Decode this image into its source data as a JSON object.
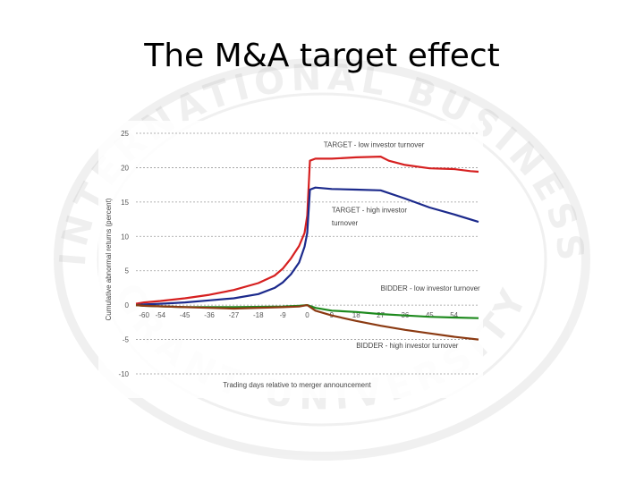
{
  "slide": {
    "title": "The M&A target effect"
  },
  "watermark": {
    "text_top": "INTERNATIONAL BUSINESS",
    "text_bottom": "GRANT UNIVERSITY"
  },
  "colors": {
    "target_low": "#d62020",
    "target_high": "#1c2a8c",
    "bidder_low": "#1e8a1e",
    "bidder_high": "#8b3a12"
  },
  "chart_data": {
    "type": "line",
    "title": "",
    "xlabel": "Trading days relative to merger announcement",
    "ylabel": "Cumulative abnormal returns (percent)",
    "xlim": [
      -63,
      63
    ],
    "ylim": [
      -10,
      25
    ],
    "xticks": [
      -60,
      -54,
      -45,
      -36,
      -27,
      -18,
      -9,
      0,
      9,
      18,
      27,
      36,
      45,
      54
    ],
    "xtick_labels": [
      "-60",
      "-54",
      "-45",
      "-36",
      "-27",
      "-18",
      "-9",
      "0",
      "9",
      "18",
      "27",
      "36",
      "45",
      "54"
    ],
    "yticks": [
      -10,
      -5,
      0,
      5,
      10,
      15,
      20,
      25
    ],
    "ytick_labels": [
      "-10",
      "-5",
      "0",
      "5",
      "10",
      "15",
      "20",
      "25"
    ],
    "gridlines": "dashed horizontal",
    "series": [
      {
        "name": "TARGET - low investor turnover",
        "color_key": "target_low",
        "x": [
          -63,
          -60,
          -54,
          -45,
          -36,
          -27,
          -18,
          -12,
          -9,
          -6,
          -3,
          -1,
          0,
          1,
          3,
          9,
          18,
          27,
          30,
          36,
          45,
          54,
          60,
          63
        ],
        "y": [
          0.2,
          0.4,
          0.6,
          1.0,
          1.5,
          2.2,
          3.2,
          4.3,
          5.3,
          6.8,
          8.6,
          10.5,
          13.0,
          21.0,
          21.3,
          21.3,
          21.5,
          21.6,
          21.0,
          20.4,
          19.9,
          19.8,
          19.5,
          19.4
        ]
      },
      {
        "name": "TARGET - high investor turnover",
        "color_key": "target_high",
        "x": [
          -63,
          -60,
          -54,
          -45,
          -36,
          -27,
          -18,
          -12,
          -9,
          -6,
          -3,
          -1,
          0,
          1,
          3,
          9,
          18,
          27,
          36,
          45,
          54,
          63
        ],
        "y": [
          0.0,
          0.1,
          0.2,
          0.4,
          0.7,
          1.0,
          1.6,
          2.5,
          3.3,
          4.5,
          6.2,
          8.5,
          10.5,
          16.8,
          17.1,
          16.9,
          16.8,
          16.7,
          15.5,
          14.2,
          13.2,
          12.1
        ]
      },
      {
        "name": "BIDDER - low investor turnover",
        "color_key": "bidder_low",
        "x": [
          -63,
          -60,
          -45,
          -27,
          -9,
          -3,
          0,
          3,
          9,
          18,
          27,
          36,
          45,
          54,
          63
        ],
        "y": [
          0.0,
          -0.1,
          -0.3,
          -0.3,
          -0.2,
          -0.1,
          0.0,
          -0.4,
          -0.8,
          -1.0,
          -1.3,
          -1.5,
          -1.7,
          -1.8,
          -1.9
        ]
      },
      {
        "name": "BIDDER - high investor turnover",
        "color_key": "bidder_high",
        "x": [
          -63,
          -60,
          -45,
          -27,
          -9,
          -3,
          0,
          3,
          9,
          18,
          27,
          36,
          45,
          54,
          63
        ],
        "y": [
          0.0,
          -0.1,
          -0.3,
          -0.5,
          -0.3,
          -0.2,
          0.0,
          -0.8,
          -1.5,
          -2.3,
          -3.0,
          -3.6,
          -4.1,
          -4.6,
          -5.0
        ]
      }
    ],
    "annotations": [
      {
        "text": "TARGET - low investor turnover",
        "series": "TARGET - low investor turnover"
      },
      {
        "text": "TARGET - high investor",
        "series": "TARGET - high investor turnover"
      },
      {
        "text": "turnover",
        "series": "TARGET - high investor turnover"
      },
      {
        "text": "BIDDER - low investor turnover",
        "series": "BIDDER - low investor turnover"
      },
      {
        "text": "BIDDER - high investor turnover",
        "series": "BIDDER - high investor turnover"
      }
    ]
  }
}
